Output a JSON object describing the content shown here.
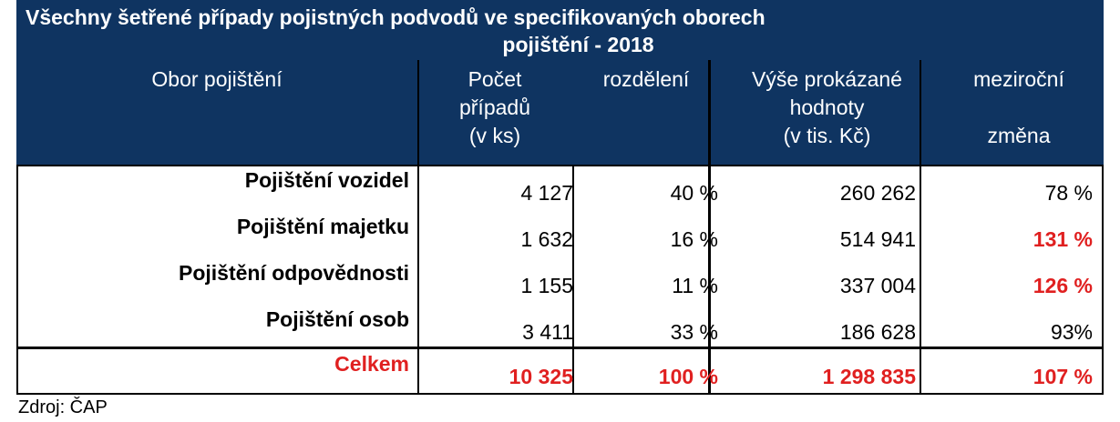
{
  "title": {
    "line1": "Všechny šetřené případy pojistných podvodů ve specifikovaných oborech",
    "line2": "pojištění - 2018"
  },
  "headers": {
    "obor": "Obor pojištění",
    "pocet": [
      "Počet",
      "případů",
      "(v ks)"
    ],
    "rozdeleni": "rozdělení",
    "vyse": [
      "Výše prokázané",
      "hodnoty",
      "(v tis. Kč)"
    ],
    "mezirocni": [
      "meziroční",
      "změna"
    ]
  },
  "rows": [
    {
      "label": "Pojištění vozidel",
      "pocet": "4 127",
      "rozdeleni": "40 %",
      "vyse": "260 262",
      "mezirocni": "78 %",
      "mezirocni_highlight": false
    },
    {
      "label": "Pojištění majetku",
      "pocet": "1 632",
      "rozdeleni": "16 %",
      "vyse": "514 941",
      "mezirocni": "131 %",
      "mezirocni_highlight": true
    },
    {
      "label": "Pojištění odpovědnosti",
      "pocet": "1 155",
      "rozdeleni": "11 %",
      "vyse": "337 004",
      "mezirocni": "126 %",
      "mezirocni_highlight": true
    },
    {
      "label": "Pojištění osob",
      "pocet": "3 411",
      "rozdeleni": "33 %",
      "vyse": "186 628",
      "mezirocni": "93%",
      "mezirocni_highlight": false
    }
  ],
  "total": {
    "label": "Celkem",
    "pocet": "10 325",
    "rozdeleni": "100 %",
    "vyse": "1 298 835",
    "mezirocni": "107 %"
  },
  "source": "Zdroj: ČAP",
  "colors": {
    "header_bg": "#0f3461",
    "highlight": "#e02020"
  }
}
